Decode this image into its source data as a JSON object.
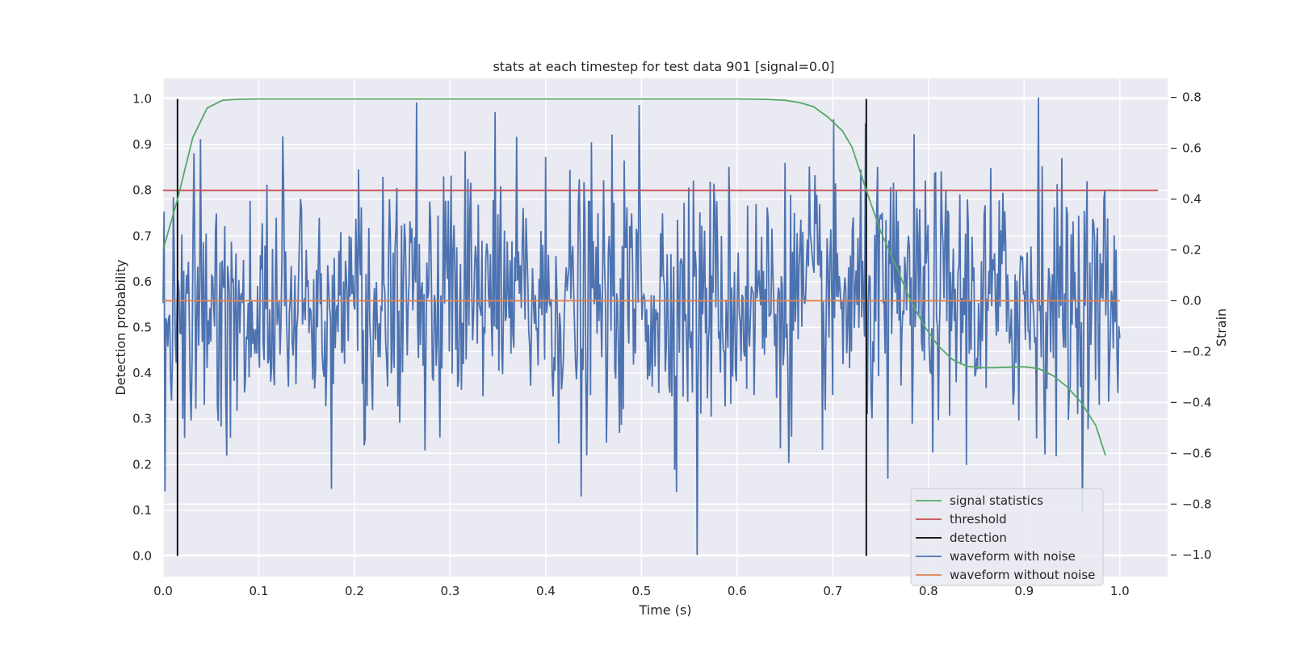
{
  "chart_data": {
    "type": "line",
    "title": "stats at each timestep for test data 901 [signal=0.0]",
    "xlabel": "Time (s)",
    "ylabel_left": "Detection probability",
    "ylabel_right": "Strain",
    "xlim": [
      0.0,
      1.05
    ],
    "ylim_left": [
      -0.045,
      1.045
    ],
    "ylim_right": [
      -1.085,
      0.875
    ],
    "xticks": [
      "0.0",
      "0.1",
      "0.2",
      "0.3",
      "0.4",
      "0.5",
      "0.6",
      "0.7",
      "0.8",
      "0.9",
      "1.0"
    ],
    "yticks_left": [
      "0.0",
      "0.1",
      "0.2",
      "0.3",
      "0.4",
      "0.5",
      "0.6",
      "0.7",
      "0.8",
      "0.9",
      "1.0"
    ],
    "yticks_right": [
      "−1.0",
      "−0.8",
      "−0.6",
      "−0.4",
      "−0.2",
      "0.0",
      "0.2",
      "0.4",
      "0.6",
      "0.8"
    ],
    "grid": true,
    "legend_position": "lower-right",
    "colors": {
      "background": "#eaeaf2",
      "grid": "#ffffff",
      "signal_statistics": "#55a868",
      "threshold": "#c44e52",
      "detection": "#000000",
      "waveform_with_noise": "#4c72b0",
      "waveform_without_noise": "#dd8452"
    },
    "legend": [
      "signal statistics",
      "threshold",
      "detection",
      "waveform with noise",
      "waveform without noise"
    ],
    "signal_statistics": {
      "axis": "left",
      "x": [
        0.0,
        0.015,
        0.031,
        0.046,
        0.062,
        0.077,
        0.1,
        0.2,
        0.3,
        0.4,
        0.5,
        0.6,
        0.63,
        0.65,
        0.665,
        0.68,
        0.695,
        0.71,
        0.72,
        0.735,
        0.75,
        0.765,
        0.78,
        0.795,
        0.81,
        0.825,
        0.84,
        0.855,
        0.87,
        0.885,
        0.9,
        0.915,
        0.93,
        0.945,
        0.96,
        0.975,
        0.985
      ],
      "y": [
        0.67,
        0.78,
        0.915,
        0.98,
        0.997,
        0.999,
        1.0,
        1.0,
        1.0,
        1.0,
        1.0,
        1.0,
        0.999,
        0.997,
        0.992,
        0.983,
        0.96,
        0.93,
        0.895,
        0.8,
        0.71,
        0.64,
        0.565,
        0.505,
        0.46,
        0.43,
        0.415,
        0.412,
        0.412,
        0.413,
        0.414,
        0.41,
        0.395,
        0.37,
        0.335,
        0.285,
        0.22
      ]
    },
    "threshold": {
      "axis": "left",
      "value": 0.8,
      "x_range": [
        0.0,
        1.04
      ]
    },
    "detection": {
      "axis": "left",
      "x": [
        0.015,
        0.735
      ],
      "y_range": [
        0.0,
        1.0
      ]
    },
    "waveform_without_noise": {
      "axis": "right",
      "value": 0.0,
      "x_range": [
        0.0,
        1.0
      ]
    },
    "waveform_with_noise": {
      "axis": "right",
      "x_range": [
        0.0,
        1.0
      ],
      "description_points": 1024,
      "extremes": [
        {
          "x": 0.002,
          "y": -0.75
        },
        {
          "x": 0.032,
          "y": 0.58
        },
        {
          "x": 0.265,
          "y": 0.78
        },
        {
          "x": 0.498,
          "y": 0.77
        },
        {
          "x": 0.558,
          "y": -1.0
        },
        {
          "x": 0.915,
          "y": 0.8
        },
        {
          "x": 0.758,
          "y": -0.7
        },
        {
          "x": 0.176,
          "y": -0.74
        },
        {
          "x": 0.437,
          "y": -0.77
        }
      ],
      "std": 0.25
    }
  }
}
